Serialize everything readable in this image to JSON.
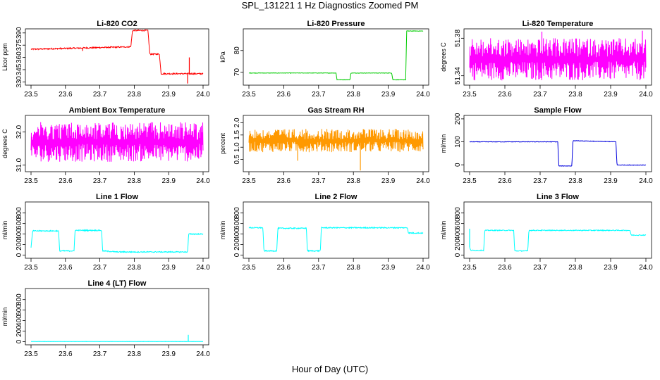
{
  "title": "SPL_131221 1 Hz Diagnostics Zoomed PM",
  "xlabel": "Hour of Day (UTC)",
  "chart_data": [
    {
      "type": "line",
      "title": "Li-820 CO2",
      "ylabel": "Licor ppm",
      "color": "#ff0000",
      "xlim": [
        23.5,
        24.0
      ],
      "ylim": [
        326,
        395
      ],
      "xticks": [
        "23.5",
        "23.6",
        "23.7",
        "23.8",
        "23.9",
        "24.0"
      ],
      "yticks": [
        330,
        345,
        360,
        375,
        390
      ],
      "noise": 0.8,
      "spikes": [
        [
          23.65,
          368
        ],
        [
          23.955,
          328
        ],
        [
          23.96,
          360
        ]
      ],
      "series": [
        {
          "x": [
            23.5,
            23.79,
            23.795,
            23.84,
            23.845,
            23.873,
            23.878,
            24.0
          ],
          "y": [
            370,
            373,
            393,
            393,
            364,
            364,
            340,
            340
          ]
        }
      ]
    },
    {
      "type": "line",
      "title": "Li-820 Pressure",
      "ylabel": "kPa",
      "color": "#00cc00",
      "xlim": [
        23.5,
        24.0
      ],
      "ylim": [
        64,
        90
      ],
      "xticks": [
        "23.5",
        "23.6",
        "23.7",
        "23.8",
        "23.9",
        "24.0"
      ],
      "yticks": [
        70,
        80
      ],
      "noise": 0.1,
      "spikes": [],
      "series": [
        {
          "x": [
            23.5,
            23.75,
            23.753,
            23.79,
            23.793,
            23.91,
            23.913,
            23.95,
            23.953,
            24.0
          ],
          "y": [
            69.6,
            69.6,
            66.5,
            66.5,
            69.6,
            69.6,
            66.5,
            66.5,
            89.0,
            89.0
          ]
        }
      ]
    },
    {
      "type": "line",
      "title": "Li-820 Temperature",
      "ylabel": "degrees C",
      "color": "#ff00ff",
      "xlim": [
        23.5,
        24.0
      ],
      "ylim": [
        51.33,
        51.39
      ],
      "xticks": [
        "23.5",
        "23.6",
        "23.7",
        "23.8",
        "23.9",
        "24.0"
      ],
      "yticks": [
        51.34,
        51.38
      ],
      "ytick_labels": [
        "51.34",
        "51.38"
      ],
      "band": [
        51.335,
        51.38
      ],
      "spikes": [
        [
          23.705,
          51.387
        ],
        [
          23.99,
          51.388
        ]
      ],
      "series": [
        {
          "x": [
            23.5,
            24.0
          ],
          "y": [
            51.36,
            51.36
          ]
        }
      ]
    },
    {
      "type": "line",
      "title": "Ambient Box Temperature",
      "ylabel": "degrees C",
      "color": "#ff00ff",
      "xlim": [
        23.5,
        24.0
      ],
      "ylim": [
        30.8,
        32.5
      ],
      "xticks": [
        "23.5",
        "23.6",
        "23.7",
        "23.8",
        "23.9",
        "24.0"
      ],
      "yticks": [
        31.0,
        32.0
      ],
      "ytick_labels": [
        "31.0",
        "32.0"
      ],
      "band": [
        31.1,
        32.3
      ],
      "spikes": [],
      "series": [
        {
          "x": [
            23.5,
            24.0
          ],
          "y": [
            31.7,
            31.7
          ]
        }
      ]
    },
    {
      "type": "line",
      "title": "Gas Stream RH",
      "ylabel": "percent",
      "color": "#ff9900",
      "xlim": [
        23.5,
        24.0
      ],
      "ylim": [
        0,
        2.3
      ],
      "xticks": [
        "23.5",
        "23.6",
        "23.7",
        "23.8",
        "23.9",
        "24.0"
      ],
      "yticks": [
        0.5,
        1.0,
        1.5,
        2.0
      ],
      "ytick_labels": [
        "0.5",
        "1.0",
        "1.5",
        "2.0"
      ],
      "band": [
        0.8,
        1.75
      ],
      "spikes": [
        [
          23.82,
          0.05
        ],
        [
          23.64,
          0.45
        ]
      ],
      "series": [
        {
          "x": [
            23.5,
            24.0
          ],
          "y": [
            1.28,
            1.28
          ]
        }
      ]
    },
    {
      "type": "line",
      "title": "Sample Flow",
      "ylabel": "ml/min",
      "color": "#0000dd",
      "xlim": [
        23.5,
        24.0
      ],
      "ylim": [
        -30,
        215
      ],
      "xticks": [
        "23.5",
        "23.6",
        "23.7",
        "23.8",
        "23.9",
        "24.0"
      ],
      "yticks": [
        0,
        100,
        200
      ],
      "noise": 1.0,
      "spikes": [],
      "series": [
        {
          "x": [
            23.5,
            23.75,
            23.753,
            23.79,
            23.793,
            23.915,
            23.918,
            24.0
          ],
          "y": [
            100,
            100,
            -5,
            -5,
            105,
            100,
            -1,
            -1
          ]
        }
      ]
    },
    {
      "type": "line",
      "title": "Line 1 Flow",
      "ylabel": "ml/min",
      "color": "#00ffff",
      "xlim": [
        23.5,
        24.0
      ],
      "ylim": [
        -60,
        1010
      ],
      "xticks": [
        "23.5",
        "23.6",
        "23.7",
        "23.8",
        "23.9",
        "24.0"
      ],
      "yticks": [
        0,
        200,
        400,
        600,
        800
      ],
      "noise": 10,
      "spikes": [],
      "series": [
        {
          "x": [
            23.5,
            23.505,
            23.58,
            23.583,
            23.625,
            23.628,
            23.705,
            23.708,
            23.75,
            23.955,
            23.958,
            24.0
          ],
          "y": [
            150,
            460,
            460,
            80,
            80,
            470,
            470,
            80,
            60,
            60,
            400,
            400
          ]
        }
      ]
    },
    {
      "type": "line",
      "title": "Line 2 Flow",
      "ylabel": "ml/min",
      "color": "#00ffff",
      "xlim": [
        23.5,
        24.0
      ],
      "ylim": [
        -60,
        1010
      ],
      "xticks": [
        "23.5",
        "23.6",
        "23.7",
        "23.8",
        "23.9",
        "24.0"
      ],
      "yticks": [
        0,
        200,
        400,
        600,
        800
      ],
      "noise": 10,
      "spikes": [],
      "series": [
        {
          "x": [
            23.5,
            23.54,
            23.543,
            23.58,
            23.583,
            23.665,
            23.668,
            23.705,
            23.708,
            23.955,
            23.958,
            24.0
          ],
          "y": [
            520,
            520,
            80,
            80,
            510,
            510,
            80,
            80,
            520,
            520,
            420,
            420
          ]
        }
      ]
    },
    {
      "type": "line",
      "title": "Line 3 Flow",
      "ylabel": "ml/min",
      "color": "#00ffff",
      "xlim": [
        23.5,
        24.0
      ],
      "ylim": [
        -60,
        1010
      ],
      "xticks": [
        "23.5",
        "23.6",
        "23.7",
        "23.8",
        "23.9",
        "24.0"
      ],
      "yticks": [
        0,
        200,
        400,
        600,
        800
      ],
      "noise": 8,
      "spikes": [
        [
          23.5,
          500
        ]
      ],
      "series": [
        {
          "x": [
            23.5,
            23.503,
            23.54,
            23.543,
            23.625,
            23.628,
            23.665,
            23.668,
            23.955,
            23.958,
            24.0
          ],
          "y": [
            150,
            90,
            90,
            470,
            470,
            80,
            80,
            470,
            470,
            380,
            380
          ]
        }
      ]
    },
    {
      "type": "line",
      "title": "Line 4 (LT) Flow",
      "ylabel": "ml/min",
      "color": "#00ffff",
      "xlim": [
        23.5,
        24.0
      ],
      "ylim": [
        -60,
        1010
      ],
      "xticks": [
        "23.5",
        "23.6",
        "23.7",
        "23.8",
        "23.9",
        "24.0"
      ],
      "yticks": [
        0,
        200,
        400,
        600,
        800
      ],
      "noise": 1.5,
      "spikes": [
        [
          23.957,
          130
        ]
      ],
      "series": [
        {
          "x": [
            23.5,
            24.0
          ],
          "y": [
            3,
            3
          ]
        }
      ]
    }
  ]
}
